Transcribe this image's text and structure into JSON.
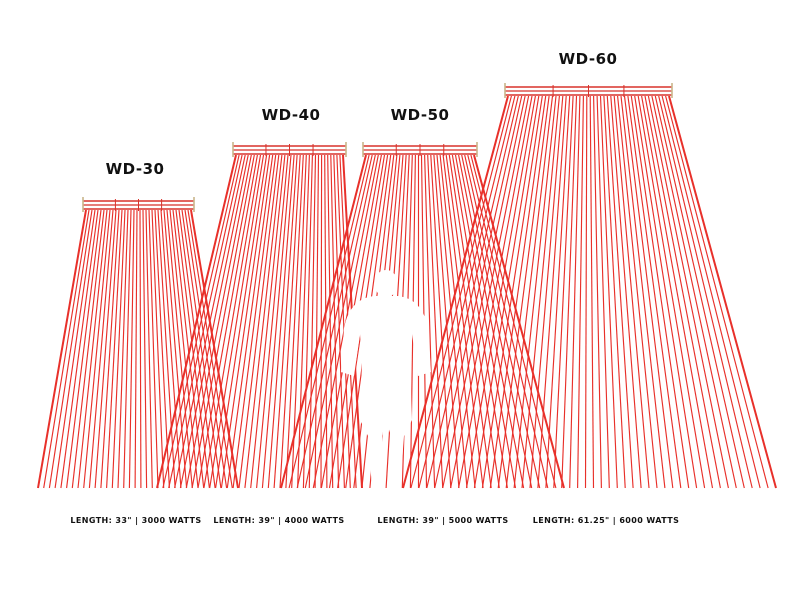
{
  "colors": {
    "beam": "#e8302a",
    "rail": "#d8322b",
    "post": "#c9b58a",
    "silhouette": "#ffffff",
    "text": "#111111"
  },
  "heaters": [
    {
      "model": "WD-30",
      "spec": "LENGTH: 33\" | 3000 WATTS"
    },
    {
      "model": "WD-40",
      "spec": "LENGTH: 39\" | 4000 WATTS"
    },
    {
      "model": "WD-50",
      "spec": "LENGTH: 39\" | 5000 WATTS"
    },
    {
      "model": "WD-60",
      "spec": "LENGTH: 61.25\" | 6000 WATTS"
    }
  ]
}
